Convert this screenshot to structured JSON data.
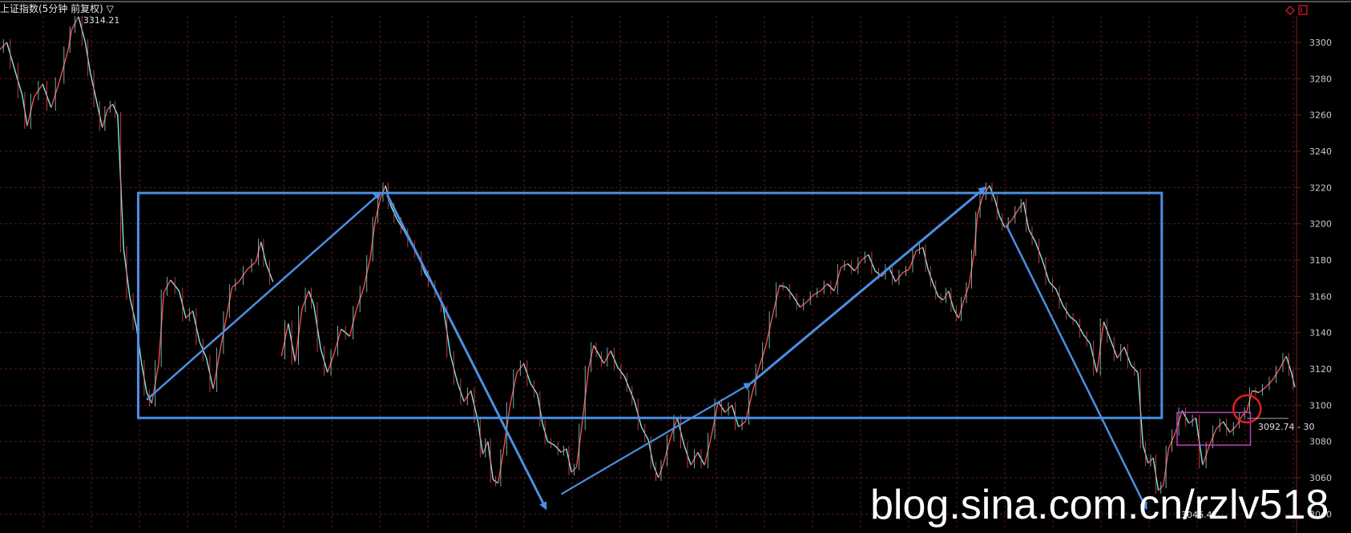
{
  "window": {
    "title": "上证指数(5分钟 前复权) ▽",
    "top_right_icons": [
      "diamond-icon",
      "maximize-icon"
    ]
  },
  "chart_data": {
    "type": "line",
    "series": [
      {
        "values": [
          [
            0,
            3296
          ],
          [
            8,
            3300
          ],
          [
            16,
            3287
          ],
          [
            26,
            3271
          ],
          [
            32,
            3254
          ],
          [
            40,
            3270
          ],
          [
            50,
            3277
          ],
          [
            60,
            3264
          ],
          [
            70,
            3279
          ],
          [
            80,
            3296
          ],
          [
            84,
            3307
          ],
          [
            92,
            3314.21
          ],
          [
            100,
            3300
          ],
          [
            106,
            3283
          ],
          [
            114,
            3266
          ],
          [
            120,
            3253
          ],
          [
            126,
            3263
          ],
          [
            132,
            3266
          ],
          [
            138,
            3260
          ],
          [
            145,
            3186
          ],
          [
            152,
            3160
          ],
          [
            160,
            3143
          ],
          [
            166,
            3123
          ],
          [
            172,
            3107
          ],
          [
            178,
            3101
          ],
          [
            186,
            3123
          ],
          [
            192,
            3162
          ],
          [
            200,
            3169
          ],
          [
            210,
            3163
          ],
          [
            218,
            3148
          ],
          [
            226,
            3152
          ],
          [
            234,
            3135
          ],
          [
            242,
            3126
          ],
          [
            250,
            3109
          ],
          [
            258,
            3130
          ],
          [
            266,
            3150
          ],
          [
            272,
            3165
          ],
          [
            280,
            3168
          ],
          [
            290,
            3175
          ],
          [
            300,
            3179
          ],
          [
            306,
            3190
          ],
          [
            312,
            3178
          ],
          [
            320,
            3168
          ],
          [
            330,
            3127
          ],
          [
            338,
            3145
          ],
          [
            346,
            3124
          ],
          [
            354,
            3153
          ],
          [
            362,
            3163
          ],
          [
            368,
            3155
          ],
          [
            376,
            3131
          ],
          [
            384,
            3118
          ],
          [
            392,
            3129
          ],
          [
            400,
            3142
          ],
          [
            410,
            3138
          ],
          [
            418,
            3153
          ],
          [
            426,
            3164
          ],
          [
            434,
            3181
          ],
          [
            440,
            3202
          ],
          [
            446,
            3214
          ],
          [
            452,
            3221
          ],
          [
            458,
            3210
          ],
          [
            466,
            3202
          ],
          [
            474,
            3196
          ],
          [
            482,
            3189
          ],
          [
            490,
            3183
          ],
          [
            498,
            3173
          ],
          [
            506,
            3167
          ],
          [
            514,
            3161
          ],
          [
            520,
            3153
          ],
          [
            528,
            3128
          ],
          [
            536,
            3113
          ],
          [
            544,
            3102
          ],
          [
            552,
            3108
          ],
          [
            560,
            3092
          ],
          [
            566,
            3073
          ],
          [
            572,
            3080
          ],
          [
            578,
            3059
          ],
          [
            584,
            3057
          ],
          [
            590,
            3074
          ],
          [
            598,
            3100
          ],
          [
            606,
            3118
          ],
          [
            614,
            3123
          ],
          [
            622,
            3112
          ],
          [
            630,
            3106
          ],
          [
            636,
            3090
          ],
          [
            642,
            3080
          ],
          [
            650,
            3078
          ],
          [
            658,
            3074
          ],
          [
            664,
            3076
          ],
          [
            670,
            3063
          ],
          [
            676,
            3066
          ],
          [
            682,
            3088
          ],
          [
            690,
            3120
          ],
          [
            696,
            3133
          ],
          [
            702,
            3128
          ],
          [
            708,
            3123
          ],
          [
            716,
            3130
          ],
          [
            724,
            3121
          ],
          [
            732,
            3116
          ],
          [
            738,
            3109
          ],
          [
            744,
            3102
          ],
          [
            752,
            3088
          ],
          [
            760,
            3081
          ],
          [
            766,
            3067
          ],
          [
            772,
            3060
          ],
          [
            778,
            3068
          ],
          [
            786,
            3082
          ],
          [
            794,
            3093
          ],
          [
            802,
            3078
          ],
          [
            810,
            3067
          ],
          [
            818,
            3074
          ],
          [
            826,
            3067
          ],
          [
            834,
            3083
          ],
          [
            842,
            3102
          ],
          [
            850,
            3096
          ],
          [
            858,
            3100
          ],
          [
            866,
            3088
          ],
          [
            874,
            3091
          ],
          [
            882,
            3107
          ],
          [
            890,
            3121
          ],
          [
            898,
            3133
          ],
          [
            906,
            3150
          ],
          [
            914,
            3166
          ],
          [
            922,
            3165
          ],
          [
            930,
            3160
          ],
          [
            938,
            3154
          ],
          [
            946,
            3157
          ],
          [
            954,
            3161
          ],
          [
            962,
            3163
          ],
          [
            970,
            3167
          ],
          [
            978,
            3163
          ],
          [
            986,
            3176
          ],
          [
            994,
            3178
          ],
          [
            1002,
            3174
          ],
          [
            1010,
            3180
          ],
          [
            1018,
            3183
          ],
          [
            1026,
            3174
          ],
          [
            1034,
            3171
          ],
          [
            1042,
            3176
          ],
          [
            1050,
            3168
          ],
          [
            1058,
            3173
          ],
          [
            1066,
            3175
          ],
          [
            1074,
            3185
          ],
          [
            1082,
            3187
          ],
          [
            1088,
            3175
          ],
          [
            1094,
            3167
          ],
          [
            1100,
            3160
          ],
          [
            1106,
            3158
          ],
          [
            1112,
            3163
          ],
          [
            1118,
            3153
          ],
          [
            1124,
            3148
          ],
          [
            1130,
            3158
          ],
          [
            1136,
            3166
          ],
          [
            1142,
            3184
          ],
          [
            1146,
            3205
          ],
          [
            1152,
            3215
          ],
          [
            1160,
            3221
          ],
          [
            1166,
            3214
          ],
          [
            1172,
            3204
          ],
          [
            1178,
            3198
          ],
          [
            1186,
            3202
          ],
          [
            1194,
            3208
          ],
          [
            1200,
            3212
          ],
          [
            1206,
            3197
          ],
          [
            1214,
            3190
          ],
          [
            1222,
            3180
          ],
          [
            1230,
            3168
          ],
          [
            1238,
            3164
          ],
          [
            1246,
            3155
          ],
          [
            1254,
            3149
          ],
          [
            1262,
            3146
          ],
          [
            1270,
            3139
          ],
          [
            1278,
            3134
          ],
          [
            1286,
            3118
          ],
          [
            1294,
            3146
          ],
          [
            1302,
            3136
          ],
          [
            1310,
            3126
          ],
          [
            1318,
            3132
          ],
          [
            1326,
            3122
          ],
          [
            1334,
            3118
          ],
          [
            1340,
            3078
          ],
          [
            1346,
            3068
          ],
          [
            1352,
            3071
          ],
          [
            1358,
            3053
          ],
          [
            1364,
            3056
          ],
          [
            1370,
            3076
          ],
          [
            1378,
            3085
          ],
          [
            1386,
            3097
          ],
          [
            1394,
            3090
          ],
          [
            1402,
            3093
          ],
          [
            1410,
            3067
          ],
          [
            1418,
            3078
          ],
          [
            1426,
            3087
          ],
          [
            1434,
            3091
          ],
          [
            1442,
            3085
          ],
          [
            1450,
            3089
          ],
          [
            1456,
            3094
          ],
          [
            1462,
            3097
          ],
          [
            1468,
            3108
          ],
          [
            1476,
            3107
          ],
          [
            1484,
            3110
          ],
          [
            1492,
            3114
          ],
          [
            1500,
            3120
          ],
          [
            1508,
            3127
          ],
          [
            1514,
            3118
          ],
          [
            1518,
            3110
          ]
        ]
      }
    ],
    "yaxis": {
      "ticks": [
        3300,
        3280,
        3260,
        3240,
        3220,
        3200,
        3180,
        3160,
        3140,
        3120,
        3100,
        3080,
        3060,
        3040
      ],
      "range": [
        3040,
        3320
      ],
      "side": "right"
    },
    "xaxis": {
      "range": [
        0,
        1520
      ]
    },
    "grid": true,
    "colors": {
      "background": "#000000",
      "grid": "#5a1a1a",
      "line_up": "#ff4a4a",
      "line_down": "#7fe8e8",
      "annotation": "#4a90e2",
      "purple_box": "#c040c0",
      "circle": "#e02020"
    },
    "annotations": {
      "peak_label": "3314.21",
      "price_label": "3092.74 - 30",
      "low_label": "3046.47",
      "rectangle": {
        "y_top": 3217,
        "y_bottom": 3093,
        "x_start": 162,
        "x_end": 1362
      },
      "arrows": [
        {
          "from": [
            172,
            3103
          ],
          "to": [
            446,
            3217
          ]
        },
        {
          "from": [
            454,
            3216
          ],
          "to": [
            640,
            3043
          ]
        },
        {
          "from": [
            658,
            3051
          ],
          "to": [
            880,
            3112
          ]
        },
        {
          "from": [
            880,
            3112
          ],
          "to": [
            1155,
            3220
          ]
        },
        {
          "from": [
            1180,
            3199
          ],
          "to": [
            1344,
            3043
          ]
        }
      ],
      "small_box": {
        "y_top": 3096,
        "y_bottom": 3078,
        "x_start": 1380,
        "x_end": 1466
      },
      "circle": {
        "cx": 1462,
        "cy": 3098
      }
    }
  },
  "watermark": "blog.sina.com.cn/rzlv518"
}
